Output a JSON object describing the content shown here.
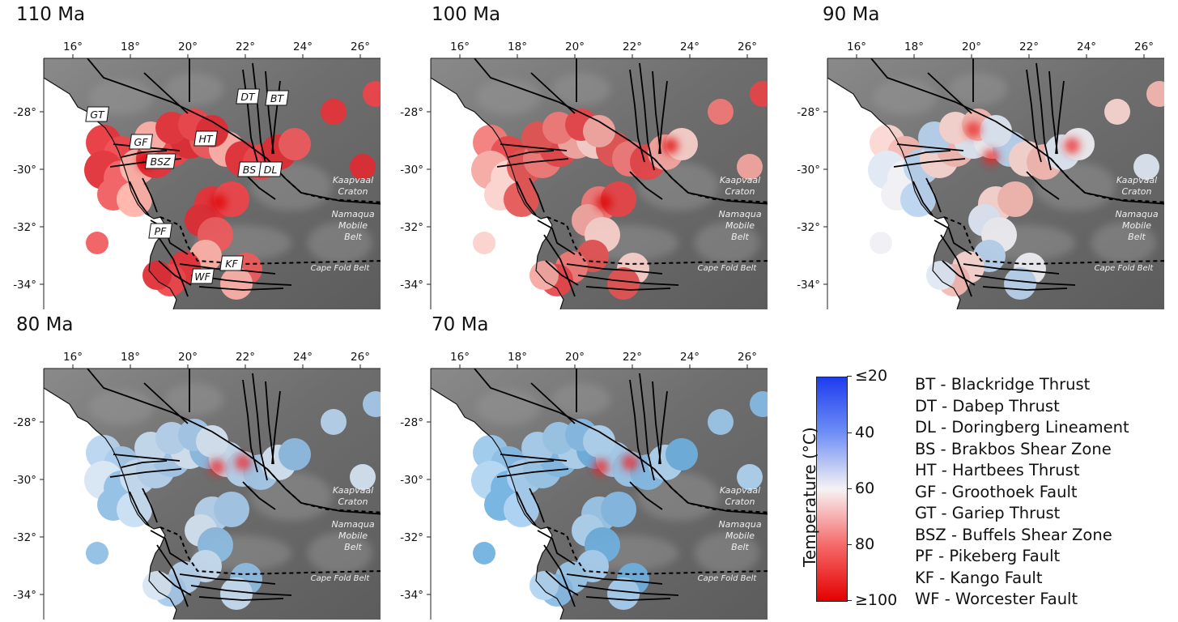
{
  "panels": [
    {
      "title": "110 Ma",
      "mode": "hot",
      "labels": true
    },
    {
      "title": "100 Ma",
      "mode": "warm",
      "labels": false
    },
    {
      "title": "90 Ma",
      "mode": "mixed",
      "labels": false
    },
    {
      "title": "80 Ma",
      "mode": "cool",
      "labels": false
    },
    {
      "title": "70 Ma",
      "mode": "cold",
      "labels": false
    }
  ],
  "axes": {
    "lon_ticks": [
      "16°",
      "18°",
      "20°",
      "22°",
      "24°",
      "26°"
    ],
    "lat_ticks": [
      "-28°",
      "-30°",
      "-32°",
      "-34°"
    ]
  },
  "region_labels": {
    "kaapvaal": [
      "Kaapvaal",
      "Craton"
    ],
    "namaqua": [
      "Namaqua",
      "Mobile",
      "Belt"
    ],
    "cape": "Cape Fold Belt"
  },
  "fault_labels": [
    "DT",
    "BT",
    "GT",
    "GF",
    "HT",
    "BSZ",
    "BS",
    "DL",
    "PF",
    "KF",
    "WF"
  ],
  "colorbar": {
    "label": "Temperature (°C)",
    "ticks": [
      "≤20",
      "40",
      "60",
      "80",
      "≥100"
    ],
    "colors": [
      "#1e3cf0",
      "#6f8ff5",
      "#f6f3f4",
      "#f56a6a",
      "#e40000"
    ]
  },
  "legend": [
    "BT - Blackridge Thrust",
    "DT - Dabep Thrust",
    "DL - Doringberg Lineament",
    "BS - Brakbos Shear Zone",
    "HT - Hartbees Thrust",
    "GF - Groothoek Fault",
    "GT - Gariep Thrust",
    "BSZ - Buffels Shear Zone",
    "PF - Pikeberg Fault",
    "KF - Kango Fault",
    "WF - Worcester Fault"
  ]
}
